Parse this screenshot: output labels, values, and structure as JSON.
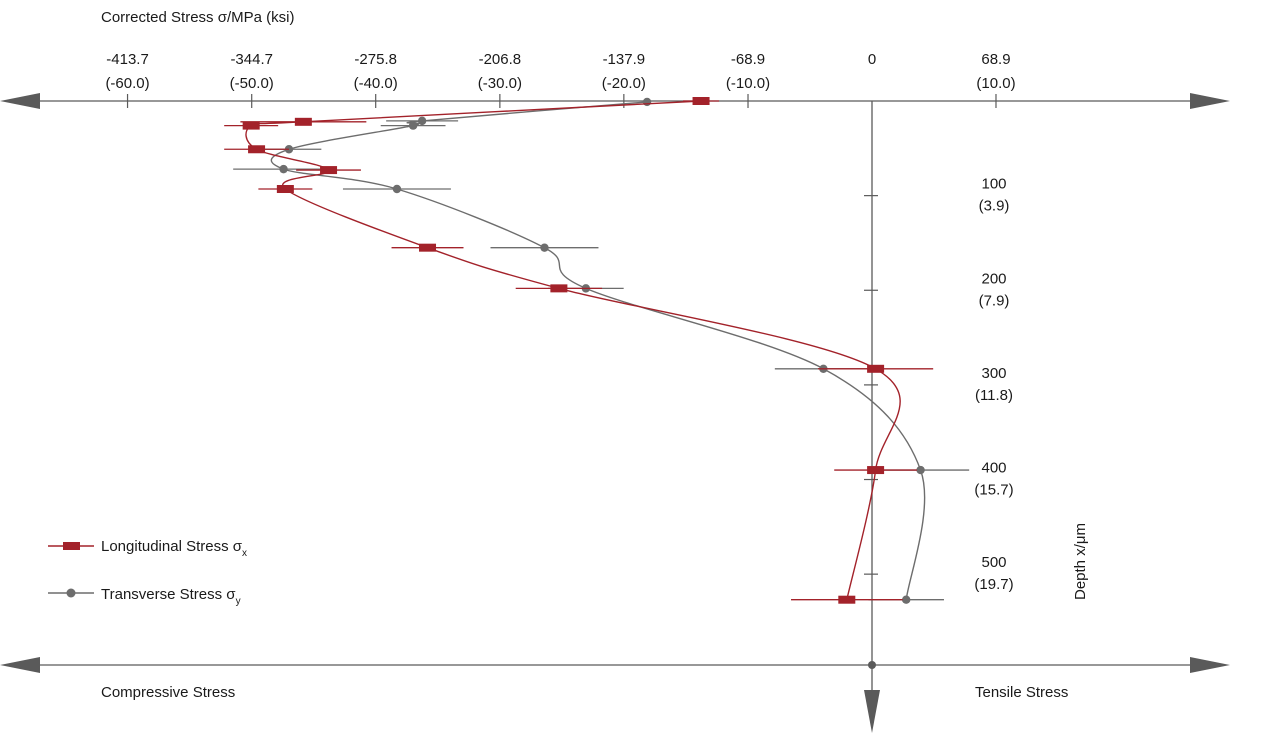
{
  "chart_data": {
    "type": "scatter",
    "title": "",
    "x_axis": {
      "label": "Corrected Stress σ/MPa (ksi)",
      "unit": "MPa",
      "range": [
        -470,
        117
      ],
      "ticks": [
        {
          "value": -413.7,
          "label": "-413.7",
          "sublabel": "(-60.0)"
        },
        {
          "value": -344.7,
          "label": "-344.7",
          "sublabel": "(-50.0)"
        },
        {
          "value": -275.8,
          "label": "-275.8",
          "sublabel": "(-40.0)"
        },
        {
          "value": -206.8,
          "label": "-206.8",
          "sublabel": "(-30.0)"
        },
        {
          "value": -137.9,
          "label": "-137.9",
          "sublabel": "(-20.0)"
        },
        {
          "value": -68.9,
          "label": "-68.9",
          "sublabel": "(-10.0)"
        },
        {
          "value": 0,
          "label": "0",
          "sublabel": ""
        },
        {
          "value": 68.9,
          "label": "68.9",
          "sublabel": "(10.0)"
        }
      ]
    },
    "y_axis": {
      "label": "Depth x/μm",
      "unit": "μm",
      "direction": "down",
      "range": [
        0,
        590
      ],
      "ticks": [
        {
          "value": 100,
          "label": "100",
          "sublabel": "(3.9)"
        },
        {
          "value": 200,
          "label": "200",
          "sublabel": "(7.9)"
        },
        {
          "value": 300,
          "label": "300",
          "sublabel": "(11.8)"
        },
        {
          "value": 400,
          "label": "400",
          "sublabel": "(15.7)"
        },
        {
          "value": 500,
          "label": "500",
          "sublabel": "(19.7)"
        }
      ]
    },
    "region_labels": {
      "left": "Compressive Stress",
      "right": "Tensile Stress"
    },
    "grid": false,
    "legend_position": "bottom-left",
    "series": [
      {
        "name": "Longitudinal Stress σ",
        "subscript": "x",
        "marker": "bar",
        "color": "#a3222a",
        "points": [
          {
            "x": -95,
            "y": 0,
            "err": 10
          },
          {
            "x": -316,
            "y": 22,
            "err": 35
          },
          {
            "x": -345,
            "y": 26,
            "err": 15
          },
          {
            "x": -342,
            "y": 51,
            "err": 18
          },
          {
            "x": -302,
            "y": 73,
            "err": 18
          },
          {
            "x": -326,
            "y": 93,
            "err": 15
          },
          {
            "x": -247,
            "y": 155,
            "err": 20
          },
          {
            "x": -174,
            "y": 198,
            "err": 24
          },
          {
            "x": 2,
            "y": 283,
            "err": 32
          },
          {
            "x": 2,
            "y": 390,
            "err": 23
          },
          {
            "x": -14,
            "y": 527,
            "err": 31
          }
        ]
      },
      {
        "name": "Transverse Stress σ",
        "subscript": "y",
        "marker": "circle",
        "color": "#6d6d6d",
        "points": [
          {
            "x": -125,
            "y": 1,
            "err": 0
          },
          {
            "x": -250,
            "y": 21,
            "err": 20
          },
          {
            "x": -255,
            "y": 26,
            "err": 18
          },
          {
            "x": -324,
            "y": 51,
            "err": 18
          },
          {
            "x": -327,
            "y": 72,
            "err": 28
          },
          {
            "x": -264,
            "y": 93,
            "err": 30
          },
          {
            "x": -182,
            "y": 155,
            "err": 30
          },
          {
            "x": -159,
            "y": 198,
            "err": 21
          },
          {
            "x": -27,
            "y": 283,
            "err": 27
          },
          {
            "x": 27,
            "y": 390,
            "err": 27
          },
          {
            "x": 19,
            "y": 527,
            "err": 21
          }
        ]
      }
    ]
  }
}
